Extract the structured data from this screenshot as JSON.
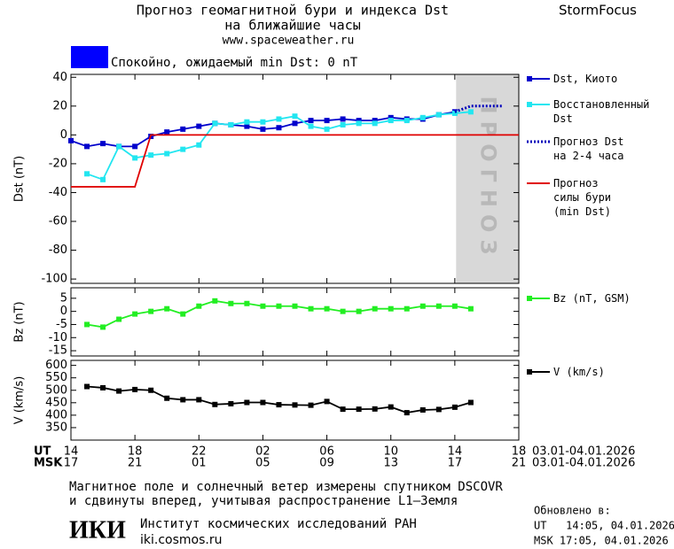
{
  "header": {
    "title": "Прогноз геомагнитной бури и индекса Dst",
    "subtitle": "на ближайшие часы",
    "url": "www.spaceweather.ru",
    "brand": "StormFocus",
    "status": {
      "text": "Спокойно, ожидаемый min Dst: 0 nT",
      "color": "#0000ff"
    }
  },
  "chart_data": [
    {
      "type": "line",
      "ylabel": "Dst (nT)",
      "xlim": [
        0,
        28
      ],
      "ylim": [
        -103,
        42
      ],
      "yticks": [
        40,
        20,
        0,
        -20,
        -40,
        -60,
        -80,
        -100
      ],
      "forecast_region": {
        "x": [
          24.08,
          28
        ],
        "label": "ПРОГНОЗ",
        "color": "#d8d8d8"
      },
      "series": [
        {
          "name": "Dst, Киото",
          "color": "#0000cc",
          "marker": "square",
          "x": [
            0,
            1,
            2,
            3,
            4,
            5,
            6,
            7,
            8,
            9,
            10,
            11,
            12,
            13,
            14,
            15,
            16,
            17,
            18,
            19,
            20,
            21,
            22,
            23,
            24
          ],
          "values": [
            -4,
            -8,
            -6,
            -8,
            -8,
            -1,
            2,
            4,
            6,
            8,
            7,
            6,
            4,
            5,
            8,
            10,
            10,
            11,
            10,
            10,
            12,
            11,
            11,
            14,
            16
          ]
        },
        {
          "name": "Восстановленный\nDst",
          "color": "#22e6f0",
          "marker": "square",
          "x": [
            1,
            2,
            3,
            4,
            5,
            6,
            7,
            8,
            9,
            10,
            11,
            12,
            13,
            14,
            15,
            16,
            17,
            18,
            19,
            20,
            21,
            22,
            23,
            24,
            25
          ],
          "values": [
            -27,
            -31,
            -8,
            -16,
            -14,
            -13,
            -10,
            -7,
            8,
            7,
            9,
            9,
            11,
            13,
            6,
            4,
            7,
            8,
            8,
            10,
            10,
            12,
            14,
            15,
            16
          ]
        },
        {
          "name": "Прогноз Dst\nна 2-4 часа",
          "color": "#0000bb",
          "dashed": true,
          "x": [
            24,
            25,
            26,
            27
          ],
          "values": [
            16,
            20,
            20,
            20
          ]
        },
        {
          "name": "Прогноз\nсилы бури\n(min Dst)",
          "color": "#e00000",
          "x": [
            0,
            4,
            5,
            28
          ],
          "values": [
            -36,
            -36,
            0,
            0
          ]
        }
      ]
    },
    {
      "type": "line",
      "ylabel": "Bz (nT)",
      "xlim": [
        0,
        28
      ],
      "ylim": [
        -17,
        9
      ],
      "yticks": [
        5,
        0,
        -5,
        -10,
        -15
      ],
      "series": [
        {
          "name": "Bz (nT, GSM)",
          "color": "#22ee22",
          "marker": "square",
          "x": [
            1,
            2,
            3,
            4,
            5,
            6,
            7,
            8,
            9,
            10,
            11,
            12,
            13,
            14,
            15,
            16,
            17,
            18,
            19,
            20,
            21,
            22,
            23,
            24,
            25
          ],
          "values": [
            -5,
            -6,
            -3,
            -1,
            0,
            1,
            -1,
            2,
            4,
            3,
            3,
            2,
            2,
            2,
            1,
            1,
            0,
            0,
            1,
            1,
            1,
            2,
            2,
            2,
            1
          ]
        }
      ]
    },
    {
      "type": "line",
      "ylabel": "V (km/s)",
      "xlim": [
        0,
        28
      ],
      "ylim": [
        300,
        620
      ],
      "yticks": [
        600,
        550,
        500,
        450,
        400,
        350
      ],
      "xrow_labels": [
        "UT",
        "MSK"
      ],
      "xticks": [
        {
          "value": 0,
          "label": "14"
        },
        {
          "value": 4,
          "label": "18"
        },
        {
          "value": 8,
          "label": "22"
        },
        {
          "value": 12,
          "label": "02"
        },
        {
          "value": 16,
          "label": "06"
        },
        {
          "value": 20,
          "label": "10"
        },
        {
          "value": 24,
          "label": "14"
        },
        {
          "value": 28,
          "label": "18"
        }
      ],
      "x2ticks": [
        {
          "value": 0,
          "label": "17"
        },
        {
          "value": 4,
          "label": "21"
        },
        {
          "value": 8,
          "label": "01"
        },
        {
          "value": 12,
          "label": "05"
        },
        {
          "value": 16,
          "label": "09"
        },
        {
          "value": 20,
          "label": "13"
        },
        {
          "value": 24,
          "label": "17"
        },
        {
          "value": 28,
          "label": "21"
        }
      ],
      "date_range": [
        "03.01-04.01.2026",
        "03.01-04.01.2026"
      ],
      "series": [
        {
          "name": "V (km/s)",
          "color": "#000000",
          "marker": "square",
          "x": [
            1,
            2,
            3,
            4,
            5,
            6,
            7,
            8,
            9,
            10,
            11,
            12,
            13,
            14,
            15,
            16,
            17,
            18,
            19,
            20,
            21,
            22,
            23,
            24,
            25
          ],
          "values": [
            515,
            510,
            497,
            503,
            500,
            468,
            462,
            462,
            443,
            446,
            451,
            451,
            442,
            441,
            440,
            455,
            424,
            424,
            425,
            433,
            410,
            421,
            423,
            432,
            451
          ]
        }
      ]
    }
  ],
  "footer": {
    "note": [
      "Магнитное поле и солнечный ветер измерены спутником DSCOVR",
      "и сдвинуты вперед, учитывая распространение L1–Земля"
    ],
    "logo": "ИКИ",
    "institute": "Институт космических исследований РАН",
    "site": "iki.cosmos.ru",
    "updated_label": "Обновлено в:",
    "updated": [
      "UT   14:05, 04.01.2026",
      "MSK 17:05, 04.01.2026"
    ]
  }
}
